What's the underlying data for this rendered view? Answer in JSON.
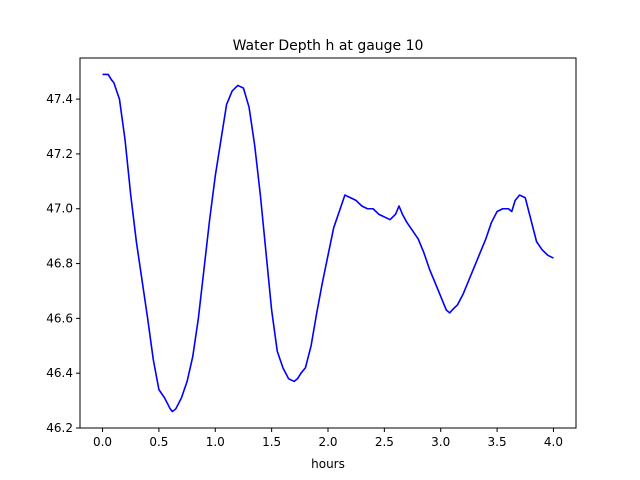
{
  "chart_data": {
    "type": "line",
    "title": "Water Depth h at gauge 10",
    "xlabel": "hours",
    "ylabel": "",
    "xlim": [
      -0.2,
      4.2
    ],
    "ylim": [
      46.2,
      47.55
    ],
    "xticks": [
      0.0,
      0.5,
      1.0,
      1.5,
      2.0,
      2.5,
      3.0,
      3.5,
      4.0
    ],
    "xtick_labels": [
      "0.0",
      "0.5",
      "1.0",
      "1.5",
      "2.0",
      "2.5",
      "3.0",
      "3.5",
      "4.0"
    ],
    "yticks": [
      46.2,
      46.4,
      46.6,
      46.8,
      47.0,
      47.2,
      47.4
    ],
    "ytick_labels": [
      "46.2",
      "46.4",
      "46.6",
      "46.8",
      "47.0",
      "47.2",
      "47.4"
    ],
    "grid": false,
    "series": [
      {
        "color": "#0000ff",
        "x": [
          0.0,
          0.05,
          0.08,
          0.1,
          0.15,
          0.2,
          0.25,
          0.3,
          0.35,
          0.4,
          0.45,
          0.5,
          0.55,
          0.6,
          0.62,
          0.65,
          0.7,
          0.75,
          0.8,
          0.85,
          0.9,
          0.95,
          1.0,
          1.05,
          1.1,
          1.15,
          1.2,
          1.25,
          1.3,
          1.35,
          1.4,
          1.45,
          1.5,
          1.55,
          1.6,
          1.65,
          1.7,
          1.73,
          1.76,
          1.8,
          1.85,
          1.9,
          1.95,
          2.0,
          2.05,
          2.1,
          2.15,
          2.2,
          2.25,
          2.3,
          2.35,
          2.4,
          2.45,
          2.5,
          2.55,
          2.6,
          2.63,
          2.66,
          2.7,
          2.75,
          2.8,
          2.85,
          2.9,
          2.95,
          3.0,
          3.05,
          3.08,
          3.1,
          3.15,
          3.2,
          3.25,
          3.3,
          3.35,
          3.4,
          3.45,
          3.5,
          3.55,
          3.6,
          3.63,
          3.66,
          3.7,
          3.75,
          3.8,
          3.85,
          3.9,
          3.95,
          4.0
        ],
        "y": [
          47.49,
          47.49,
          47.47,
          47.46,
          47.4,
          47.25,
          47.05,
          46.88,
          46.74,
          46.6,
          46.45,
          46.34,
          46.31,
          46.27,
          46.26,
          46.27,
          46.31,
          46.37,
          46.46,
          46.6,
          46.78,
          46.96,
          47.12,
          47.25,
          47.38,
          47.43,
          47.45,
          47.44,
          47.37,
          47.23,
          47.05,
          46.84,
          46.63,
          46.48,
          46.42,
          46.38,
          46.37,
          46.38,
          46.4,
          46.42,
          46.5,
          46.62,
          46.73,
          46.83,
          46.93,
          46.99,
          47.05,
          47.04,
          47.03,
          47.01,
          47.0,
          47.0,
          46.98,
          46.97,
          46.96,
          46.98,
          47.01,
          46.98,
          46.95,
          46.92,
          46.89,
          46.84,
          46.78,
          46.73,
          46.68,
          46.63,
          46.62,
          46.63,
          46.65,
          46.69,
          46.74,
          46.79,
          46.84,
          46.89,
          46.95,
          46.99,
          47.0,
          47.0,
          46.99,
          47.03,
          47.05,
          47.04,
          46.96,
          46.88,
          46.85,
          46.83,
          46.82
        ]
      }
    ]
  }
}
